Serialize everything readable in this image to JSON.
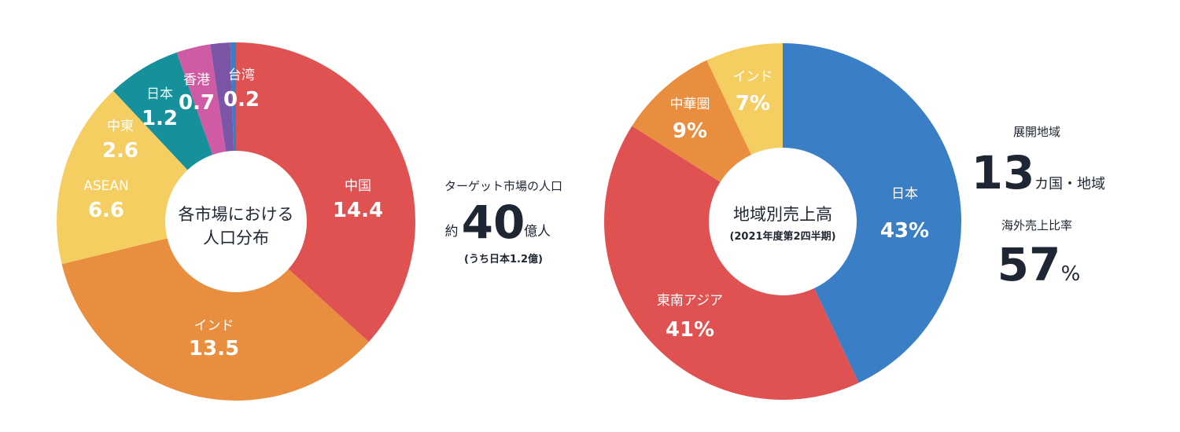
{
  "chart_data": [
    {
      "type": "pie",
      "donut": true,
      "center_text": [
        "各市場における",
        "人口分布"
      ],
      "slices": [
        {
          "label": "中国",
          "value": 14.4,
          "display": "14.4",
          "color": "#E05252"
        },
        {
          "label": "インド",
          "value": 13.5,
          "display": "13.5",
          "color": "#E88E3E"
        },
        {
          "label": "ASEAN",
          "value": 6.6,
          "display": "6.6",
          "color": "#F5CE62"
        },
        {
          "label": "中東",
          "value": 2.6,
          "display": "2.6",
          "color": "#16909B"
        },
        {
          "label": "日本",
          "value": 1.2,
          "display": "1.2",
          "color": "#CF5BA5"
        },
        {
          "label": "香港",
          "value": 0.7,
          "display": "0.7",
          "color": "#7D55A6"
        },
        {
          "label": "台湾",
          "value": 0.2,
          "display": "0.2",
          "color": "#3A7FC6"
        }
      ],
      "start": "top",
      "direction": "clockwise"
    },
    {
      "type": "pie",
      "donut": true,
      "center_text": [
        "地域別売上高",
        "(2021年度第2四半期)"
      ],
      "slices": [
        {
          "label": "日本",
          "value": 43,
          "display": "43%",
          "color": "#3A7FC6"
        },
        {
          "label": "東南アジア",
          "value": 41,
          "display": "41%",
          "color": "#E05252"
        },
        {
          "label": "中華圏",
          "value": 9,
          "display": "9%",
          "color": "#E88E3E"
        },
        {
          "label": "インド",
          "value": 7,
          "display": "7%",
          "color": "#F5CE62"
        }
      ],
      "start": "top",
      "direction": "clockwise"
    }
  ],
  "stats": {
    "target_label": "ターゲット市場の人口",
    "target_prefix": "約",
    "target_value": "40",
    "target_unit": "億人",
    "target_note": "(うち日本1.2億)",
    "regions_label": "展開地域",
    "regions_value": "13",
    "regions_unit": "カ国・地域",
    "overseas_label": "海外売上比率",
    "overseas_value": "57",
    "overseas_unit": "%"
  }
}
